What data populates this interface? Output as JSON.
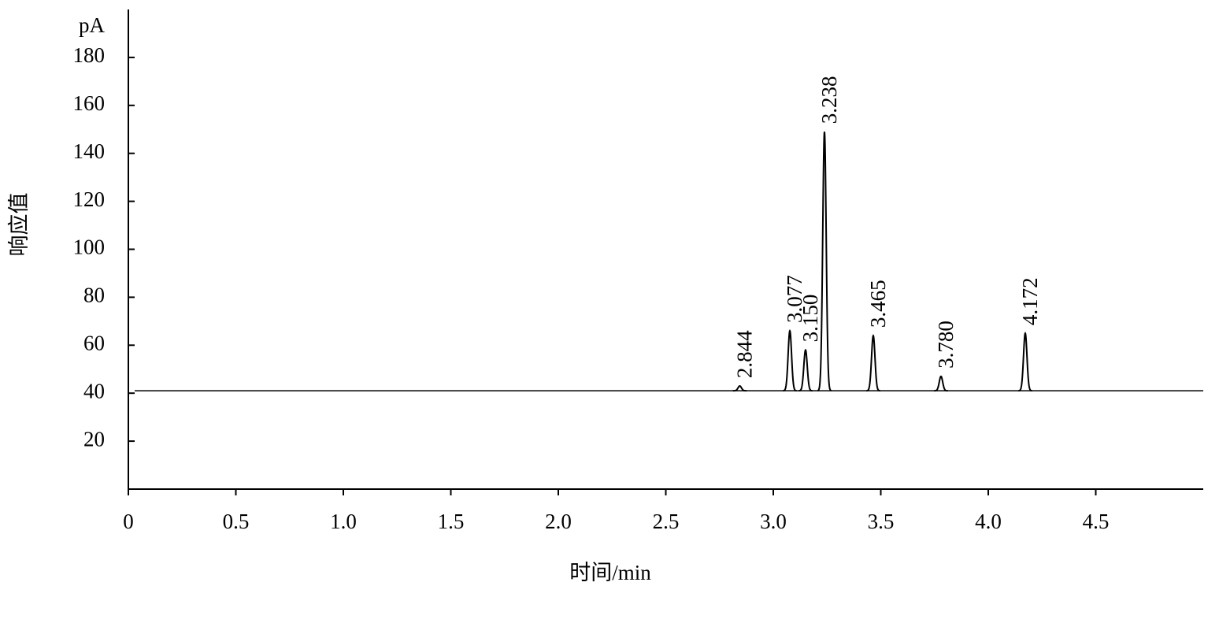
{
  "chart_data": {
    "type": "chromatogram",
    "xlabel": "时间/min",
    "ylabel": "响应值",
    "yunit": "pA",
    "xlim": [
      0,
      5
    ],
    "ylim": [
      0,
      200
    ],
    "xticks": [
      {
        "value": 0,
        "label": "0"
      },
      0.5,
      {
        "value": 1,
        "label": "1.0"
      },
      1.5,
      {
        "value": 2,
        "label": "2.0"
      },
      2.5,
      {
        "value": 3,
        "label": "3.0"
      },
      3.5,
      {
        "value": 4,
        "label": "4.0"
      },
      4.5
    ],
    "yticks": [
      20,
      40,
      60,
      80,
      100,
      120,
      140,
      160,
      180
    ],
    "baseline": 41,
    "color": "#000000",
    "peaks": {
      "x": [
        2.844,
        3.077,
        3.15,
        3.238,
        3.465,
        3.78,
        4.172
      ],
      "values": [
        43,
        66,
        58,
        149,
        64,
        47,
        65
      ],
      "value_labels": [
        "2.844",
        "3.077",
        "3.150",
        "3.238",
        "3.465",
        "3.780",
        "4.172"
      ]
    }
  }
}
